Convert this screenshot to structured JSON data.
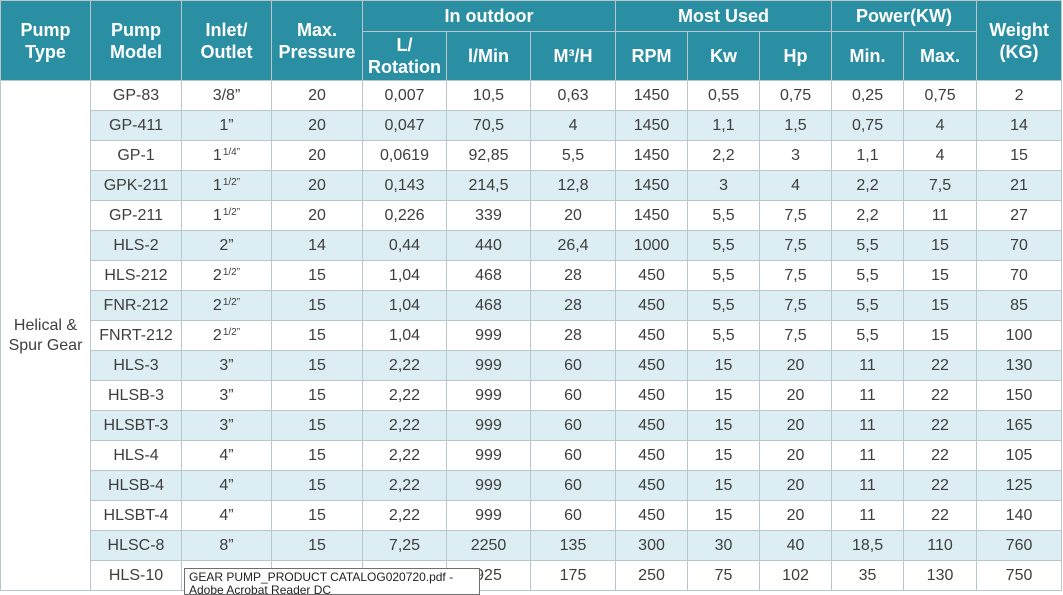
{
  "headers": {
    "pump_type": [
      "Pump",
      "Type"
    ],
    "pump_model": [
      "Pump",
      "Model"
    ],
    "inlet_outlet": [
      "Inlet/",
      "Outlet"
    ],
    "max_pressure": [
      "Max.",
      "Pressure"
    ],
    "in_outdoor": "In outdoor",
    "l_rotation": [
      "L/",
      "Rotation"
    ],
    "l_min": "l/Min",
    "m3h": "M³/H",
    "most_used": "Most Used",
    "rpm": "RPM",
    "kw": "Kw",
    "hp": "Hp",
    "power": "Power(KW)",
    "min": "Min.",
    "max": "Max.",
    "weight": [
      "Weight",
      "(KG)"
    ]
  },
  "pump_type": [
    "Helical &",
    "Spur Gear"
  ],
  "rows": [
    {
      "model": "GP-83",
      "inlet": "3/8”",
      "frac": "",
      "pressure": "20",
      "l_rot": "0,007",
      "l_min": "10,5",
      "m3h": "0,63",
      "rpm": "1450",
      "kw": "0,55",
      "hp": "0,75",
      "pmin": "0,25",
      "pmax": "0,75",
      "weight": "2"
    },
    {
      "model": "GP-411",
      "inlet": "1”",
      "frac": "",
      "pressure": "20",
      "l_rot": "0,047",
      "l_min": "70,5",
      "m3h": "4",
      "rpm": "1450",
      "kw": "1,1",
      "hp": "1,5",
      "pmin": "0,75",
      "pmax": "4",
      "weight": "14"
    },
    {
      "model": "GP-1",
      "inlet": "1",
      "frac": "1/4”",
      "pressure": "20",
      "l_rot": "0,0619",
      "l_min": "92,85",
      "m3h": "5,5",
      "rpm": "1450",
      "kw": "2,2",
      "hp": "3",
      "pmin": "1,1",
      "pmax": "4",
      "weight": "15"
    },
    {
      "model": "GPK-211",
      "inlet": "1",
      "frac": "1/2”",
      "pressure": "20",
      "l_rot": "0,143",
      "l_min": "214,5",
      "m3h": "12,8",
      "rpm": "1450",
      "kw": "3",
      "hp": "4",
      "pmin": "2,2",
      "pmax": "7,5",
      "weight": "21"
    },
    {
      "model": "GP-211",
      "inlet": "1",
      "frac": "1/2”",
      "pressure": "20",
      "l_rot": "0,226",
      "l_min": "339",
      "m3h": "20",
      "rpm": "1450",
      "kw": "5,5",
      "hp": "7,5",
      "pmin": "2,2",
      "pmax": "11",
      "weight": "27"
    },
    {
      "model": "HLS-2",
      "inlet": "2”",
      "frac": "",
      "pressure": "14",
      "l_rot": "0,44",
      "l_min": "440",
      "m3h": "26,4",
      "rpm": "1000",
      "kw": "5,5",
      "hp": "7,5",
      "pmin": "5,5",
      "pmax": "15",
      "weight": "70"
    },
    {
      "model": "HLS-212",
      "inlet": "2",
      "frac": "1/2”",
      "pressure": "15",
      "l_rot": "1,04",
      "l_min": "468",
      "m3h": "28",
      "rpm": "450",
      "kw": "5,5",
      "hp": "7,5",
      "pmin": "5,5",
      "pmax": "15",
      "weight": "70"
    },
    {
      "model": "FNR-212",
      "inlet": "2",
      "frac": "1/2”",
      "pressure": "15",
      "l_rot": "1,04",
      "l_min": "468",
      "m3h": "28",
      "rpm": "450",
      "kw": "5,5",
      "hp": "7,5",
      "pmin": "5,5",
      "pmax": "15",
      "weight": "85"
    },
    {
      "model": "FNRT-212",
      "inlet": "2",
      "frac": "1/2”",
      "pressure": "15",
      "l_rot": "1,04",
      "l_min": "999",
      "m3h": "28",
      "rpm": "450",
      "kw": "5,5",
      "hp": "7,5",
      "pmin": "5,5",
      "pmax": "15",
      "weight": "100"
    },
    {
      "model": "HLS-3",
      "inlet": "3”",
      "frac": "",
      "pressure": "15",
      "l_rot": "2,22",
      "l_min": "999",
      "m3h": "60",
      "rpm": "450",
      "kw": "15",
      "hp": "20",
      "pmin": "11",
      "pmax": "22",
      "weight": "130"
    },
    {
      "model": "HLSB-3",
      "inlet": "3”",
      "frac": "",
      "pressure": "15",
      "l_rot": "2,22",
      "l_min": "999",
      "m3h": "60",
      "rpm": "450",
      "kw": "15",
      "hp": "20",
      "pmin": "11",
      "pmax": "22",
      "weight": "150"
    },
    {
      "model": "HLSBT-3",
      "inlet": "3”",
      "frac": "",
      "pressure": "15",
      "l_rot": "2,22",
      "l_min": "999",
      "m3h": "60",
      "rpm": "450",
      "kw": "15",
      "hp": "20",
      "pmin": "11",
      "pmax": "22",
      "weight": "165"
    },
    {
      "model": "HLS-4",
      "inlet": "4”",
      "frac": "",
      "pressure": "15",
      "l_rot": "2,22",
      "l_min": "999",
      "m3h": "60",
      "rpm": "450",
      "kw": "15",
      "hp": "20",
      "pmin": "11",
      "pmax": "22",
      "weight": "105"
    },
    {
      "model": "HLSB-4",
      "inlet": "4”",
      "frac": "",
      "pressure": "15",
      "l_rot": "2,22",
      "l_min": "999",
      "m3h": "60",
      "rpm": "450",
      "kw": "15",
      "hp": "20",
      "pmin": "11",
      "pmax": "22",
      "weight": "125"
    },
    {
      "model": "HLSBT-4",
      "inlet": "4”",
      "frac": "",
      "pressure": "15",
      "l_rot": "2,22",
      "l_min": "999",
      "m3h": "60",
      "rpm": "450",
      "kw": "15",
      "hp": "20",
      "pmin": "11",
      "pmax": "22",
      "weight": "140"
    },
    {
      "model": "HLSC-8",
      "inlet": "8”",
      "frac": "",
      "pressure": "15",
      "l_rot": "7,25",
      "l_min": "2250",
      "m3h": "135",
      "rpm": "300",
      "kw": "30",
      "hp": "40",
      "pmin": "18,5",
      "pmax": "110",
      "weight": "760"
    },
    {
      "model": "HLS-10",
      "inlet": "",
      "frac": "",
      "pressure": "",
      "l_rot": "",
      "l_min": "925",
      "m3h": "175",
      "rpm": "250",
      "kw": "75",
      "hp": "102",
      "pmin": "35",
      "pmax": "130",
      "weight": "750"
    }
  ],
  "tooltip": "GEAR PUMP_PRODUCT CATALOG020720.pdf - Adobe Acrobat Reader DC",
  "colors": {
    "header_bg": "#2a8fa3",
    "stripe": "#dcedf3",
    "text": "#3e3e3e"
  }
}
